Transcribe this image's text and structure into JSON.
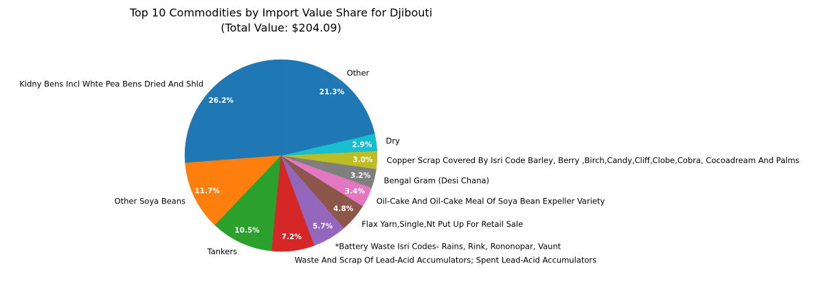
{
  "chart_data": {
    "type": "pie",
    "title": "Top 10 Commodities by Import Value Share for Djibouti",
    "subtitle": "(Total Value: $204.09)",
    "start_angle_deg": 90,
    "direction": "counterclockwise",
    "slices": [
      {
        "label": "Kidny Bens Incl Whte Pea Bens Dried And Shld",
        "value": 26.2,
        "pct_label": "26.2%",
        "color": "#1f77b4"
      },
      {
        "label": "Other Soya Beans",
        "value": 11.7,
        "pct_label": "11.7%",
        "color": "#ff7f0e"
      },
      {
        "label": "Tankers",
        "value": 10.5,
        "pct_label": "10.5%",
        "color": "#2ca02c"
      },
      {
        "label": "Waste And Scrap Of Lead-Acid Accumulators; Spent Lead-Acid Accumulators",
        "value": 7.2,
        "pct_label": "7.2%",
        "color": "#d62728"
      },
      {
        "label": "*Battery Waste Isri Codes- Rains, Rink, Rononopar, Vaunt",
        "value": 5.7,
        "pct_label": "5.7%",
        "color": "#9467bd"
      },
      {
        "label": "Flax Yarn,Single,Nt Put Up For Retail Sale",
        "value": 4.8,
        "pct_label": "4.8%",
        "color": "#8c564b"
      },
      {
        "label": "Oil-Cake And Oil-Cake Meal Of Soya Bean Expeller Variety",
        "value": 3.4,
        "pct_label": "3.4%",
        "color": "#e377c2"
      },
      {
        "label": "Bengal Gram (Desi Chana)",
        "value": 3.2,
        "pct_label": "3.2%",
        "color": "#7f7f7f"
      },
      {
        "label": "Copper Scrap Covered By Isri Code Barley, Berry ,Birch,Candy,Cliff,Clobe,Cobra, Cocoadream And Palms",
        "value": 3.0,
        "pct_label": "3.0%",
        "color": "#bcbd22"
      },
      {
        "label": "Dry",
        "value": 2.9,
        "pct_label": "2.9%",
        "color": "#17becf"
      },
      {
        "label": "Other",
        "value": 21.3,
        "pct_label": "21.3%",
        "color": "#1f77b4"
      }
    ]
  }
}
